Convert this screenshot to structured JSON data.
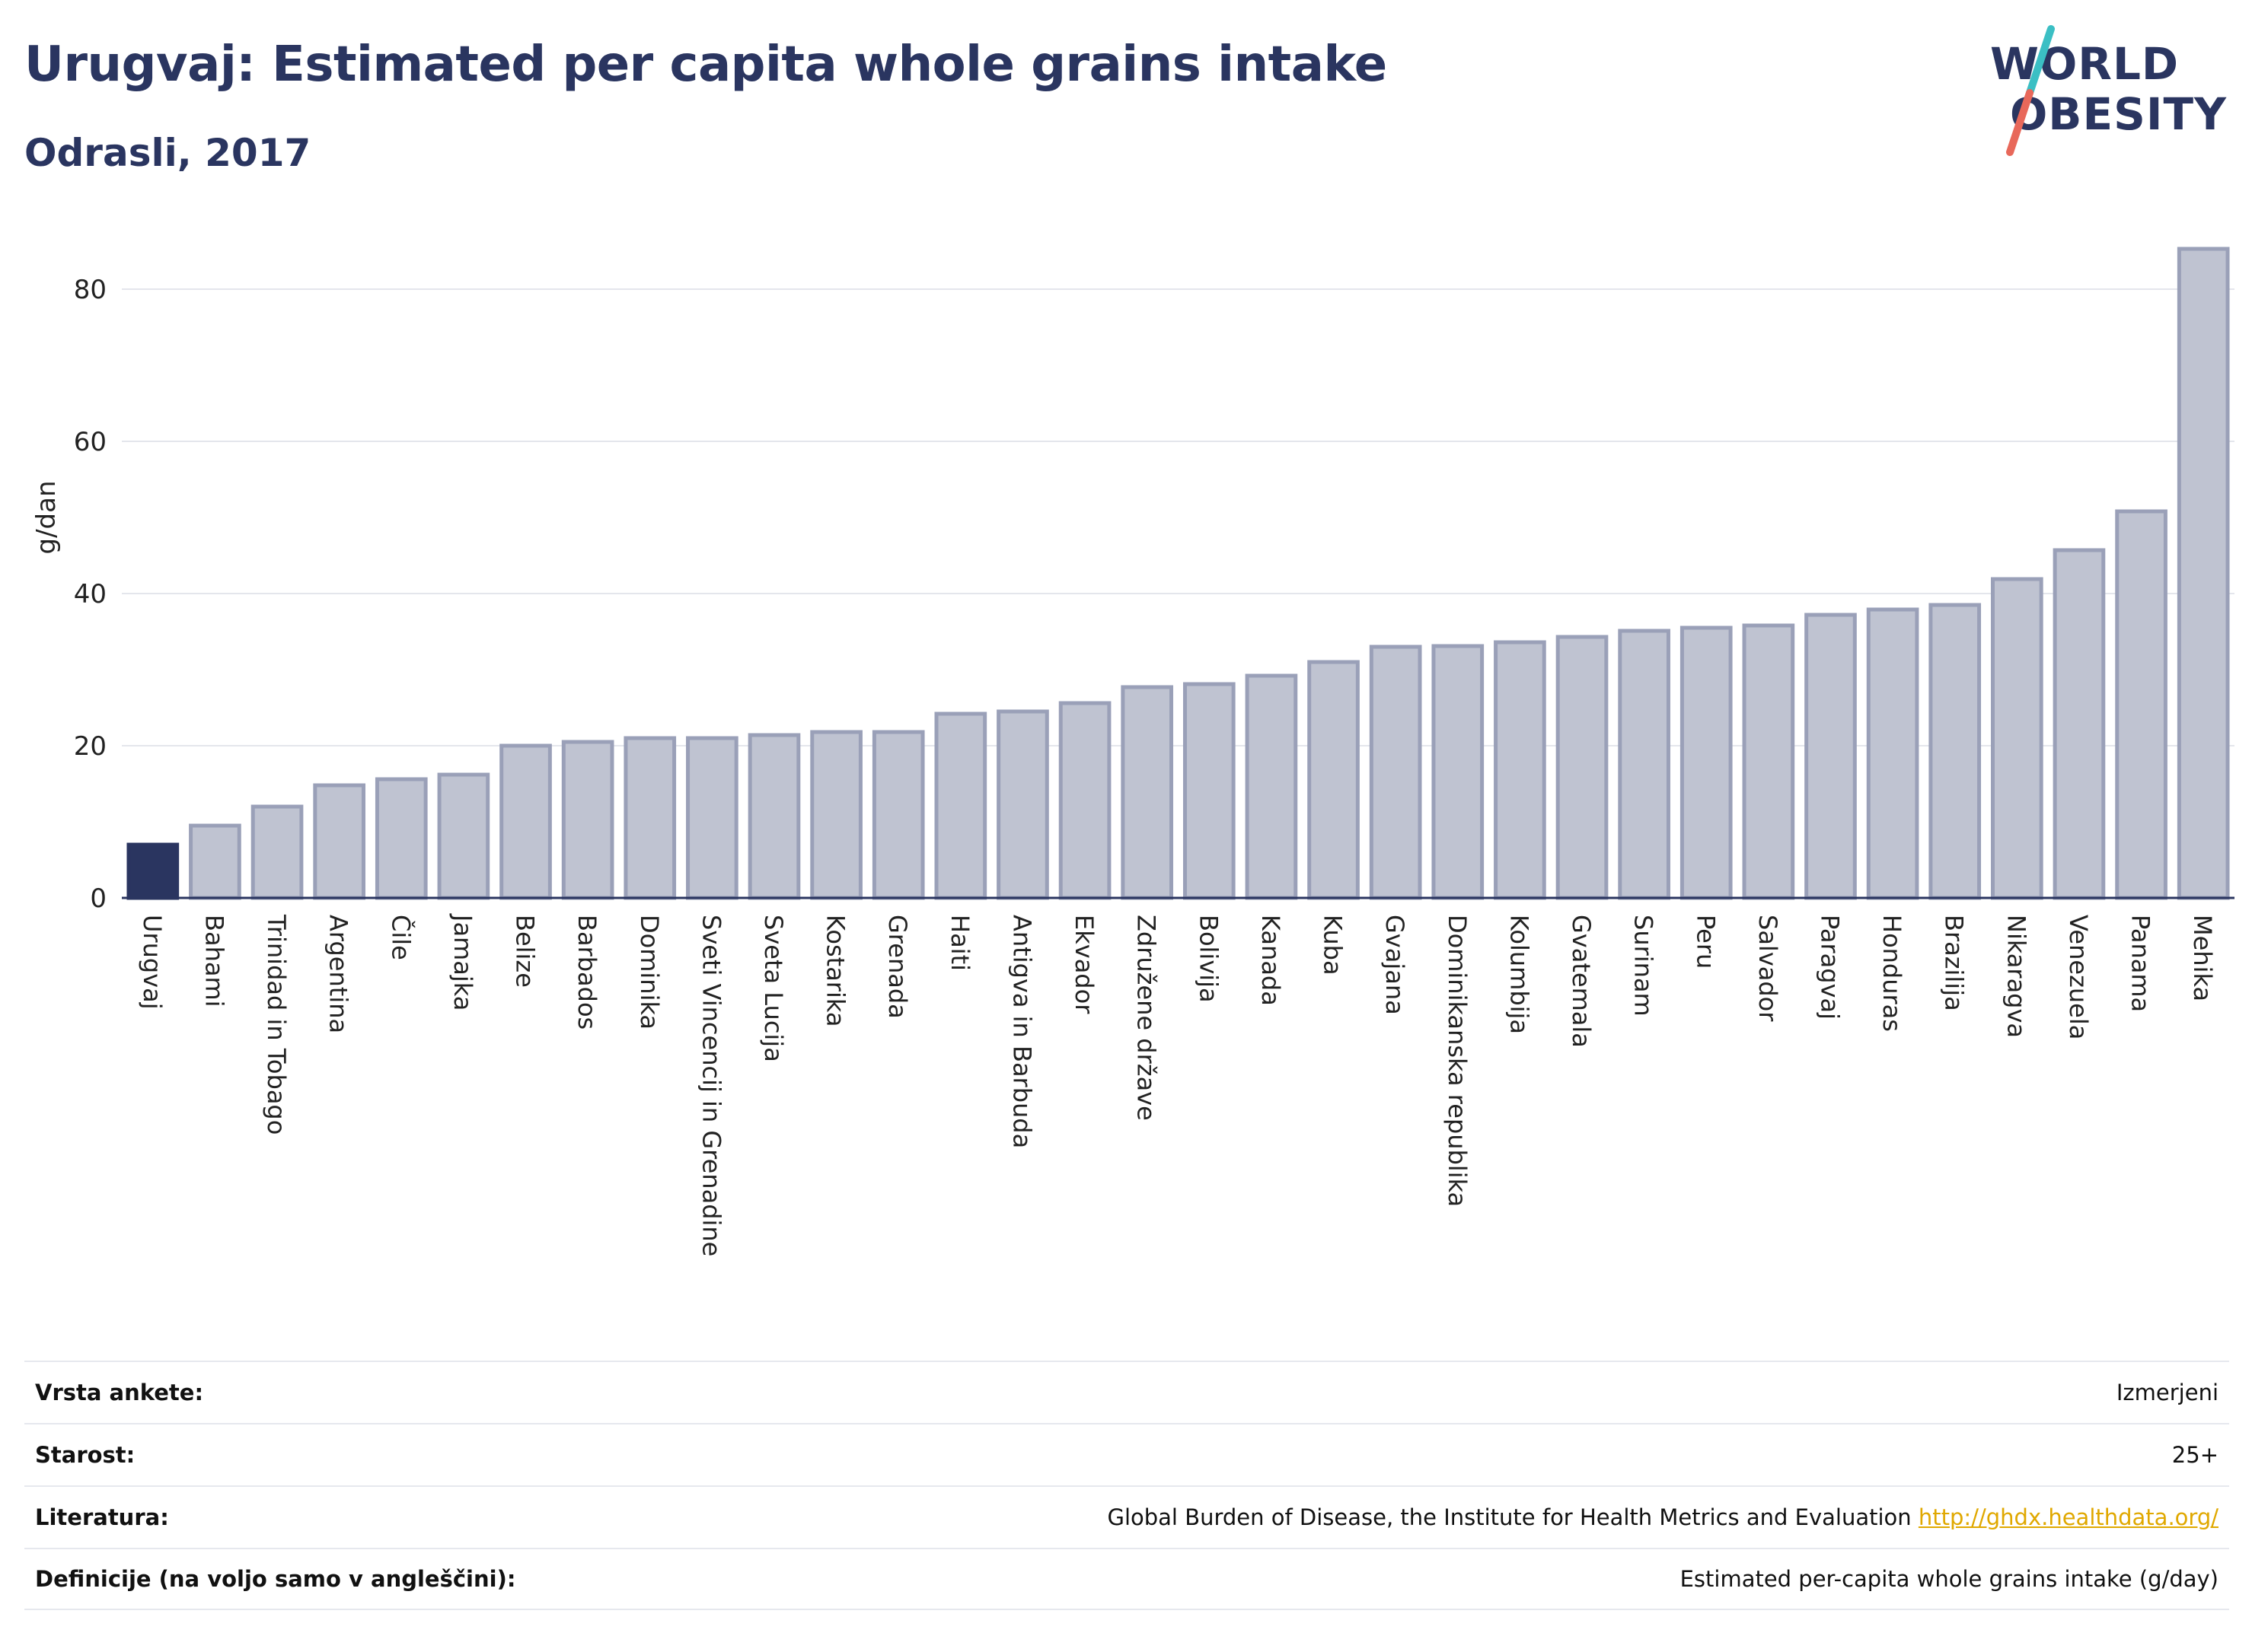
{
  "header": {
    "title": "Urugvaj: Estimated per capita whole grains intake",
    "subtitle": "Odrasli, 2017"
  },
  "logo": {
    "line1": "WORLD",
    "line2": "OBESITY"
  },
  "colors": {
    "highlight": "#2a3560",
    "bar": "#bfc3d1",
    "bar_stroke": "#9aa0b8",
    "logo_teal": "#3bbfc4",
    "logo_red": "#e8685a",
    "link": "#e0a800"
  },
  "chart_data": {
    "type": "bar",
    "ylabel": "g/dan",
    "ylim": [
      0,
      88
    ],
    "yticks": [
      0,
      20,
      40,
      60,
      80
    ],
    "grid": true,
    "highlight": "Urugvaj",
    "categories": [
      "Urugvaj",
      "Bahami",
      "Trinidad in Tobago",
      "Argentina",
      "Čile",
      "Jamajka",
      "Belize",
      "Barbados",
      "Dominika",
      "Sveti Vincencij in Grenadine",
      "Sveta Lucija",
      "Kostarika",
      "Grenada",
      "Haiti",
      "Antigva in Barbuda",
      "Ekvador",
      "Združene države",
      "Bolivija",
      "Kanada",
      "Kuba",
      "Gvajana",
      "Dominikanska republika",
      "Kolumbija",
      "Gvatemala",
      "Surinam",
      "Peru",
      "Salvador",
      "Paragvaj",
      "Honduras",
      "Brazilija",
      "Nikaragva",
      "Venezuela",
      "Panama",
      "Mehika"
    ],
    "values": [
      7.0,
      9.5,
      12.0,
      14.8,
      15.6,
      16.2,
      20.0,
      20.5,
      21.0,
      21.0,
      21.4,
      21.8,
      21.8,
      24.2,
      24.5,
      25.6,
      27.7,
      28.1,
      29.2,
      31.0,
      33.0,
      33.1,
      33.6,
      34.3,
      35.1,
      35.5,
      35.8,
      37.2,
      37.9,
      38.5,
      41.9,
      45.7,
      50.8,
      85.3
    ]
  },
  "meta": [
    {
      "label": "Vrsta ankete:",
      "value": "Izmerjeni"
    },
    {
      "label": "Starost:",
      "value": "25+"
    },
    {
      "label": "Literatura:",
      "value": "Global Burden of Disease, the Institute for Health Metrics and Evaluation",
      "link": "http://ghdx.healthdata.org/"
    },
    {
      "label": "Definicije (na voljo samo v angleščini):",
      "value": "Estimated per-capita whole grains intake (g/day)"
    }
  ]
}
